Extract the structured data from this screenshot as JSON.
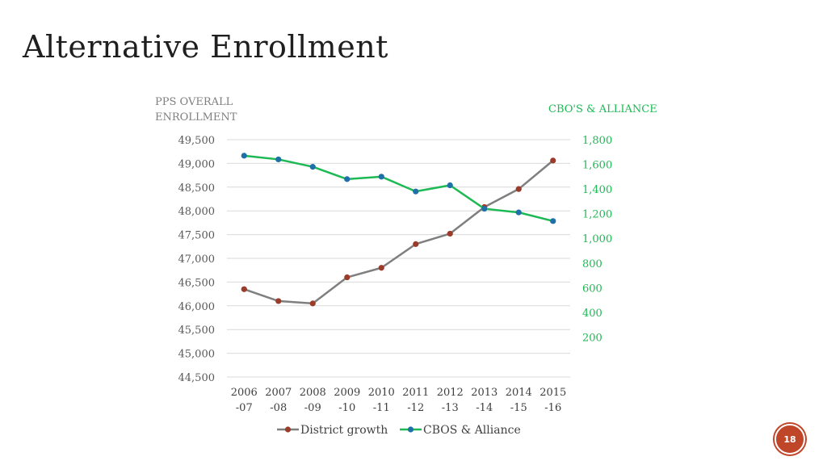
{
  "slide": {
    "title": "Alternative Enrollment",
    "page_number": "18"
  },
  "chart_data": {
    "type": "line",
    "left_axis_title": [
      "PPS OVERALL",
      "ENROLLMENT"
    ],
    "right_axis_title": "CBO'S & ALLIANCE",
    "categories": [
      [
        "2006",
        "-07"
      ],
      [
        "2007",
        "-08"
      ],
      [
        "2008",
        "-09"
      ],
      [
        "2009",
        "-10"
      ],
      [
        "2010",
        "-11"
      ],
      [
        "2011",
        "-12"
      ],
      [
        "2012",
        "-13"
      ],
      [
        "2013",
        "-14"
      ],
      [
        "2014",
        "-15"
      ],
      [
        "2015",
        "-16"
      ]
    ],
    "left_axis": {
      "min": 44500,
      "max": 49500,
      "step": 500,
      "tick_labels": [
        "44,500",
        "45,000",
        "45,500",
        "46,000",
        "46,500",
        "47,000",
        "47,500",
        "48,000",
        "48,500",
        "49,000",
        "49,500"
      ]
    },
    "right_axis": {
      "min": 0,
      "max": 1800,
      "tick_values": [
        200,
        400,
        600,
        800,
        1000,
        1200,
        1400,
        1600,
        1800
      ],
      "tick_labels": [
        "200",
        "400",
        "600",
        "800",
        "1,000",
        "1,200",
        "1,400",
        "1,600",
        "1,800"
      ]
    },
    "grid": "horizontal",
    "legend_position": "bottom",
    "series": [
      {
        "name": "District growth",
        "axis": "left",
        "color": "#7f7f7f",
        "marker_color": "#9b3b2a",
        "values": [
          46350,
          46100,
          46050,
          46600,
          46800,
          47300,
          47520,
          48080,
          48460,
          49060
        ]
      },
      {
        "name": "CBOS & Alliance",
        "axis": "right",
        "color": "#1db954",
        "marker_color": "#1f6fa8",
        "values": [
          1670,
          1640,
          1580,
          1480,
          1500,
          1380,
          1430,
          1240,
          1210,
          1140
        ]
      }
    ]
  }
}
